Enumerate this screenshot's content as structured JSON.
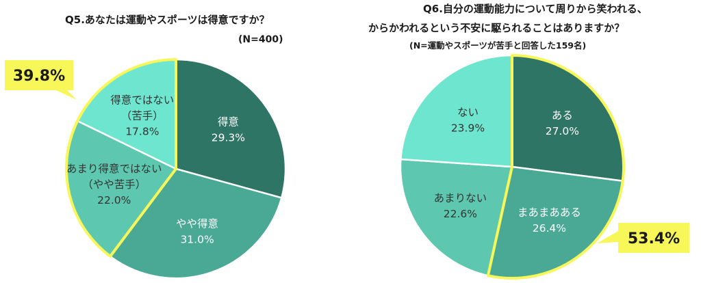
{
  "colors": {
    "dark": "#2f7566",
    "mid": "#4aa995",
    "light": "#5dc8af",
    "pale": "#6ee6cf",
    "highlight": "#f7f75a",
    "label_text": "#ffffff",
    "label_text_dark": "#333333"
  },
  "chart_data": [
    {
      "type": "pie",
      "title": "Q5.あなたは運動やスポーツは得意ですか？",
      "note": "(N=400)",
      "unit": "%",
      "slices": [
        {
          "lines": [
            "得意",
            "29.3%"
          ],
          "value": 29.3,
          "color": "#2f7566"
        },
        {
          "lines": [
            "やや得意",
            "31.0%"
          ],
          "value": 31.0,
          "color": "#4aa995"
        },
        {
          "lines": [
            "あまり得意ではない",
            "（やや苦手）",
            "22.0%"
          ],
          "value": 22.0,
          "color": "#5dc8af"
        },
        {
          "lines": [
            "得意ではない",
            "（苦手）",
            "17.8%"
          ],
          "value": 17.8,
          "color": "#6ee6cf"
        }
      ],
      "highlight_callout": "39.8%"
    },
    {
      "type": "pie",
      "title_lines": [
        "Q6.自分の運動能力について周りから笑われる、",
        "からかわれるという不安に駆られることはありますか？"
      ],
      "note": "(N=運動やスポーツが苦手と回答した159名)",
      "unit": "%",
      "slices": [
        {
          "lines": [
            "ある",
            "27.0%"
          ],
          "value": 27.0,
          "color": "#2f7566"
        },
        {
          "lines": [
            "まあまあある",
            "26.4%"
          ],
          "value": 26.4,
          "color": "#4aa995"
        },
        {
          "lines": [
            "あまりない",
            "22.6%"
          ],
          "value": 22.6,
          "color": "#5dc8af"
        },
        {
          "lines": [
            "ない",
            "23.9%"
          ],
          "value": 23.9,
          "color": "#6ee6cf"
        }
      ],
      "highlight_callout": "53.4%"
    }
  ]
}
